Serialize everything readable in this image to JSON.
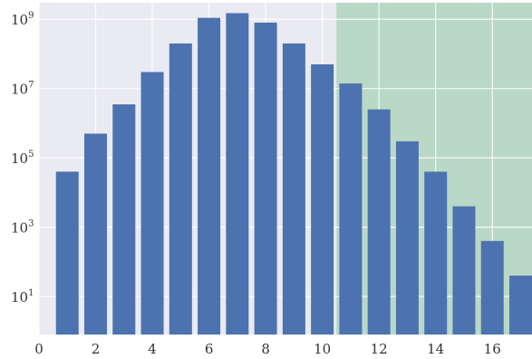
{
  "chart_data": {
    "type": "bar",
    "x": [
      1,
      2,
      3,
      4,
      5,
      6,
      7,
      8,
      9,
      10,
      11,
      12,
      13,
      14,
      15,
      16,
      17
    ],
    "values": [
      40000,
      500000,
      3500000,
      30000000,
      200000000,
      1100000000,
      1500000000,
      800000000,
      200000000,
      50000000,
      14000000,
      2500000,
      300000,
      40000,
      4000,
      400,
      40
    ],
    "xlim": [
      0,
      17.4
    ],
    "ylim": [
      0.8,
      3000000000
    ],
    "yscale": "log",
    "x_ticks": [
      {
        "value": 0,
        "label": "0"
      },
      {
        "value": 2,
        "label": "2"
      },
      {
        "value": 4,
        "label": "4"
      },
      {
        "value": 6,
        "label": "6"
      },
      {
        "value": 8,
        "label": "8"
      },
      {
        "value": 10,
        "label": "10"
      },
      {
        "value": 12,
        "label": "12"
      },
      {
        "value": 14,
        "label": "14"
      },
      {
        "value": 16,
        "label": "16"
      }
    ],
    "y_ticks": [
      {
        "value": 10,
        "base": "10",
        "exp": "1"
      },
      {
        "value": 1000,
        "base": "10",
        "exp": "3"
      },
      {
        "value": 100000,
        "base": "10",
        "exp": "5"
      },
      {
        "value": 10000000,
        "base": "10",
        "exp": "7"
      },
      {
        "value": 1000000000,
        "base": "10",
        "exp": "9"
      }
    ],
    "shaded_region": {
      "x_start": 10.5,
      "x_end": 17.4,
      "color": "#b9d8c5"
    },
    "bar_color": "#4c72b0",
    "background_color": "#eaeaf2",
    "grid": true,
    "title": "",
    "xlabel": "",
    "ylabel": ""
  }
}
